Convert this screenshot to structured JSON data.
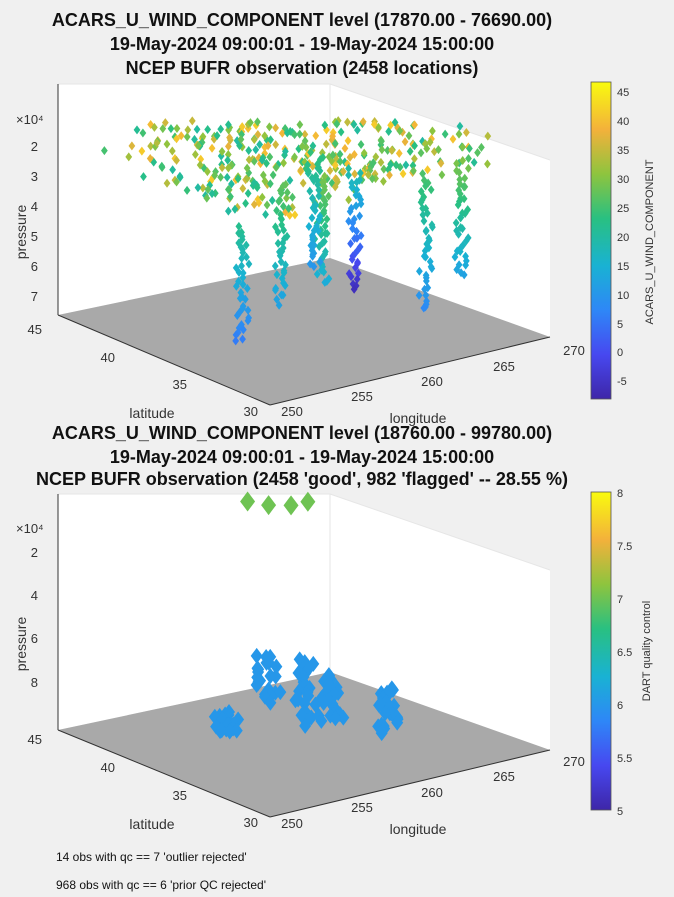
{
  "chart_data": [
    {
      "type": "scatter",
      "title_lines": [
        "ACARS_U_WIND_COMPONENT level (17870.00 - 76690.00)",
        "19-May-2024 09:00:01 - 19-May-2024 15:00:00",
        "NCEP BUFR observation (2458 locations)"
      ],
      "xlabel": "longitude",
      "ylabel": "latitude",
      "zlabel": "pressure",
      "z_exponent_label": "×10⁴",
      "x_ticks": [
        "250",
        "255",
        "260",
        "265",
        "270"
      ],
      "y_ticks": [
        "30",
        "35",
        "40",
        "45"
      ],
      "z_ticks": [
        "2",
        "3",
        "4",
        "5",
        "6",
        "7"
      ],
      "xlim": [
        250,
        270
      ],
      "ylim": [
        30,
        45
      ],
      "zlim": [
        17000,
        78000
      ],
      "z_reversed": true,
      "colorbar": {
        "label": "ACARS_U_WIND_COMPONENT",
        "ticks": [
          "45",
          "40",
          "35",
          "30",
          "25",
          "20",
          "15",
          "10",
          "5",
          "0",
          "-5"
        ],
        "range": [
          -8,
          47
        ],
        "colormap": "parula"
      },
      "series": [
        {
          "lon": 253.3,
          "lat": 35.2,
          "p_top": 40000,
          "p_bottom": 72000,
          "value_top": 22,
          "value_bottom": 6
        },
        {
          "lon": 256.8,
          "lat": 36.0,
          "p_top": 32000,
          "p_bottom": 66000,
          "value_top": 28,
          "value_bottom": 12
        },
        {
          "lon": 258.6,
          "lat": 34.8,
          "p_top": 30000,
          "p_bottom": 60000,
          "value_top": 30,
          "value_bottom": 14
        },
        {
          "lon": 261.5,
          "lat": 38.2,
          "p_top": 32000,
          "p_bottom": 64000,
          "value_top": 24,
          "value_bottom": 10
        },
        {
          "lon": 263.2,
          "lat": 37.0,
          "p_top": 36000,
          "p_bottom": 70000,
          "value_top": 20,
          "value_bottom": -6
        },
        {
          "lon": 265.0,
          "lat": 33.8,
          "p_top": 34000,
          "p_bottom": 72000,
          "value_top": 26,
          "value_bottom": 8
        },
        {
          "lon": 266.5,
          "lat": 32.8,
          "p_top": 30000,
          "p_bottom": 62000,
          "value_top": 30,
          "value_bottom": 12
        }
      ],
      "upper_band": {
        "p_range": [
          24000,
          36000
        ],
        "value_range": [
          20,
          42
        ]
      }
    },
    {
      "type": "scatter",
      "title_lines": [
        "ACARS_U_WIND_COMPONENT level (18760.00 - 99780.00)",
        "19-May-2024 09:00:01 - 19-May-2024 15:00:00",
        "NCEP BUFR observation (2458 'good', 982 'flagged' -- 28.55 %)"
      ],
      "xlabel": "longitude",
      "ylabel": "latitude",
      "zlabel": "pressure",
      "z_exponent_label": "×10⁴",
      "x_ticks": [
        "250",
        "255",
        "260",
        "265",
        "270"
      ],
      "y_ticks": [
        "30",
        "35",
        "40",
        "45"
      ],
      "z_ticks": [
        "2",
        "4",
        "6",
        "8"
      ],
      "xlim": [
        250,
        270
      ],
      "ylim": [
        30,
        45
      ],
      "zlim": [
        18000,
        100000
      ],
      "z_reversed": true,
      "colorbar": {
        "label": "DART quality control",
        "ticks": [
          "8",
          "7.5",
          "7",
          "6.5",
          "6",
          "5.5",
          "5"
        ],
        "range": [
          5,
          8
        ],
        "colormap": "parula"
      },
      "qc7_points": [
        {
          "lon": 259.0,
          "lat": 40.5,
          "p": 22000
        },
        {
          "lon": 260.5,
          "lat": 40.5,
          "p": 25000
        },
        {
          "lon": 261.8,
          "lat": 40.2,
          "p": 26000
        },
        {
          "lon": 262.8,
          "lat": 40.0,
          "p": 25500
        }
      ],
      "qc6_clusters": [
        {
          "lon": 253.0,
          "lat": 36.0,
          "p_top": 80000,
          "p_bottom": 86000
        },
        {
          "lon": 257.5,
          "lat": 37.5,
          "p_top": 68000,
          "p_bottom": 84000
        },
        {
          "lon": 259.5,
          "lat": 37.0,
          "p_top": 70000,
          "p_bottom": 92000
        },
        {
          "lon": 262.0,
          "lat": 37.5,
          "p_top": 80000,
          "p_bottom": 96000
        },
        {
          "lon": 264.5,
          "lat": 36.0,
          "p_top": 84000,
          "p_bottom": 100000
        }
      ]
    }
  ],
  "notes": [
    "14 obs with qc == 7 'outlier rejected'",
    "968 obs with qc == 6 'prior QC rejected'"
  ]
}
